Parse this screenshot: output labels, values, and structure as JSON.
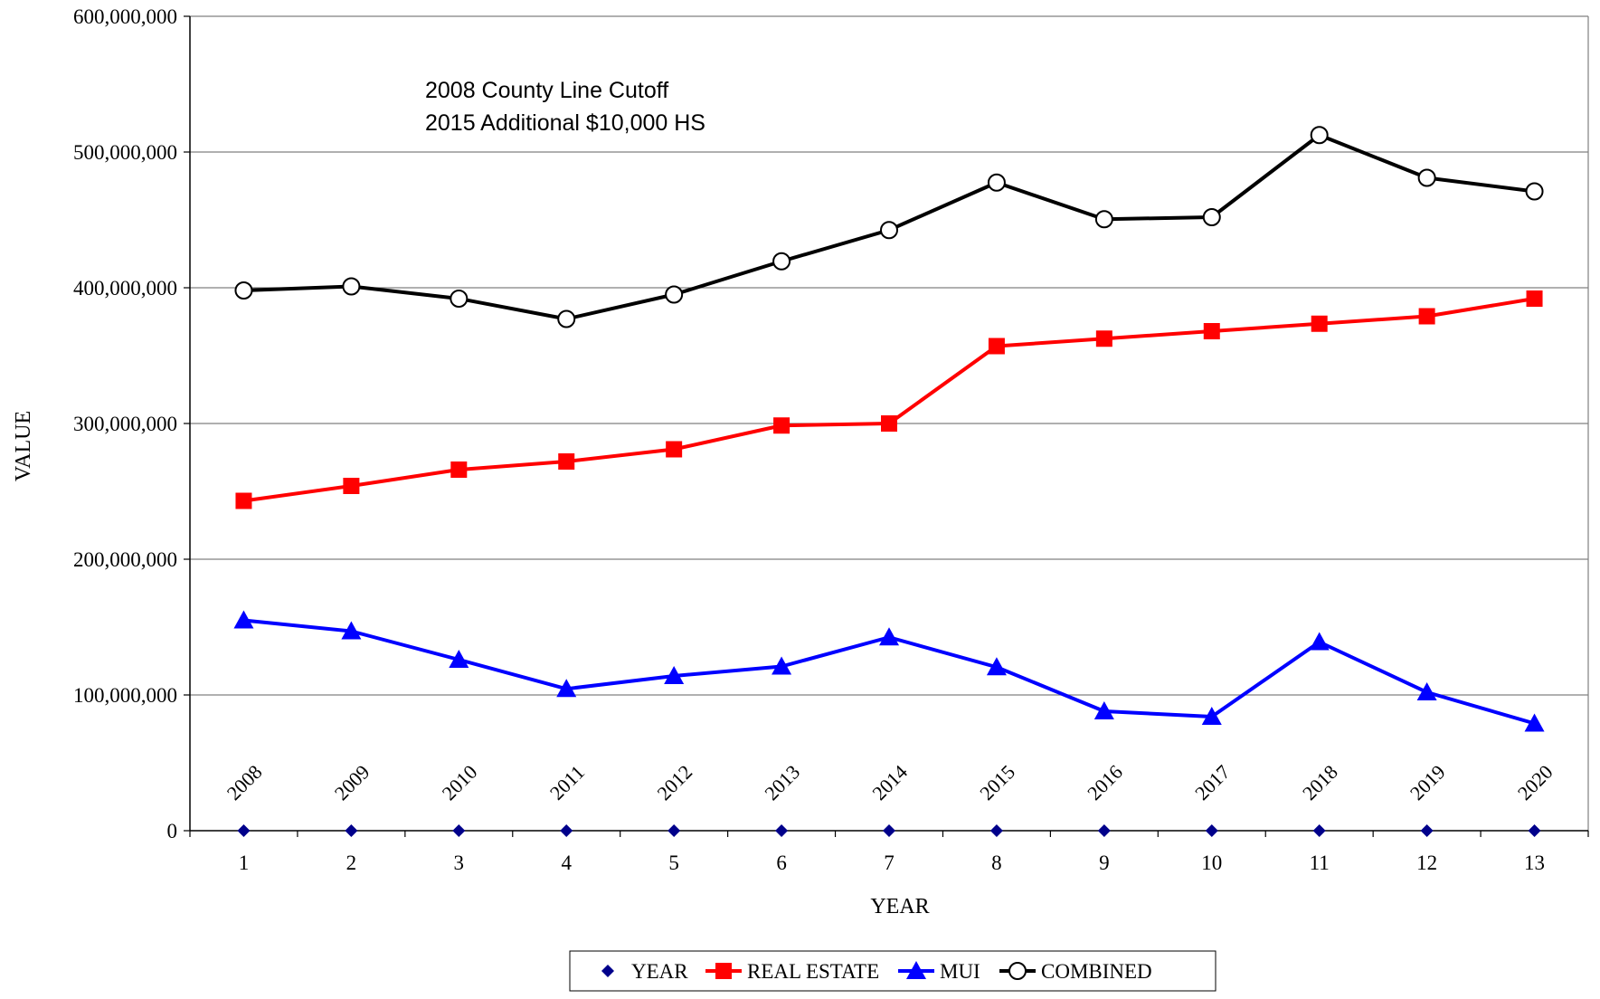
{
  "chart_data": {
    "type": "line",
    "xlabel": "YEAR",
    "ylabel": "VALUE",
    "x": [
      1,
      2,
      3,
      4,
      5,
      6,
      7,
      8,
      9,
      10,
      11,
      12,
      13
    ],
    "xlim": [
      0.5,
      13.5
    ],
    "ylim": [
      0,
      600000000
    ],
    "y_ticks": [
      0,
      100000000,
      200000000,
      300000000,
      400000000,
      500000000,
      600000000
    ],
    "y_tick_labels": [
      "0",
      "100,000,000",
      "200,000,000",
      "300,000,000",
      "400,000,000",
      "500,000,000",
      "600,000,000"
    ],
    "x_tick_labels": [
      "1",
      "2",
      "3",
      "4",
      "5",
      "6",
      "7",
      "8",
      "9",
      "10",
      "11",
      "12",
      "13"
    ],
    "grid": true,
    "legend_position": "bottom",
    "annotations": [
      "2008 County Line Cutoff",
      "2015 Additional $10,000 HS"
    ],
    "series": [
      {
        "name": "YEAR",
        "color": "#00008B",
        "marker": "diamond",
        "line": false,
        "values": [
          2008,
          2009,
          2010,
          2011,
          2012,
          2013,
          2014,
          2015,
          2016,
          2017,
          2018,
          2019,
          2020
        ],
        "data_labels": [
          "2008",
          "2009",
          "2010",
          "2011",
          "2012",
          "2013",
          "2014",
          "2015",
          "2016",
          "2017",
          "2018",
          "2019",
          "2020"
        ]
      },
      {
        "name": "REAL ESTATE",
        "color": "#FF0000",
        "marker": "square",
        "line": true,
        "values": [
          243000000,
          254000000,
          266000000,
          272000000,
          281000000,
          298500000,
          300000000,
          357000000,
          362500000,
          368000000,
          373500000,
          379000000,
          392000000
        ]
      },
      {
        "name": "MUI",
        "color": "#0000FF",
        "marker": "triangle",
        "line": true,
        "values": [
          155000000,
          147000000,
          126000000,
          104500000,
          114000000,
          121000000,
          142500000,
          120500000,
          88000000,
          84000000,
          139000000,
          102000000,
          79000000
        ]
      },
      {
        "name": "COMBINED",
        "color": "#000000",
        "marker": "circle",
        "line": true,
        "values": [
          398000000,
          401000000,
          392000000,
          377000000,
          395000000,
          419500000,
          442500000,
          477500000,
          450500000,
          452000000,
          512500000,
          481000000,
          471000000
        ]
      }
    ]
  }
}
